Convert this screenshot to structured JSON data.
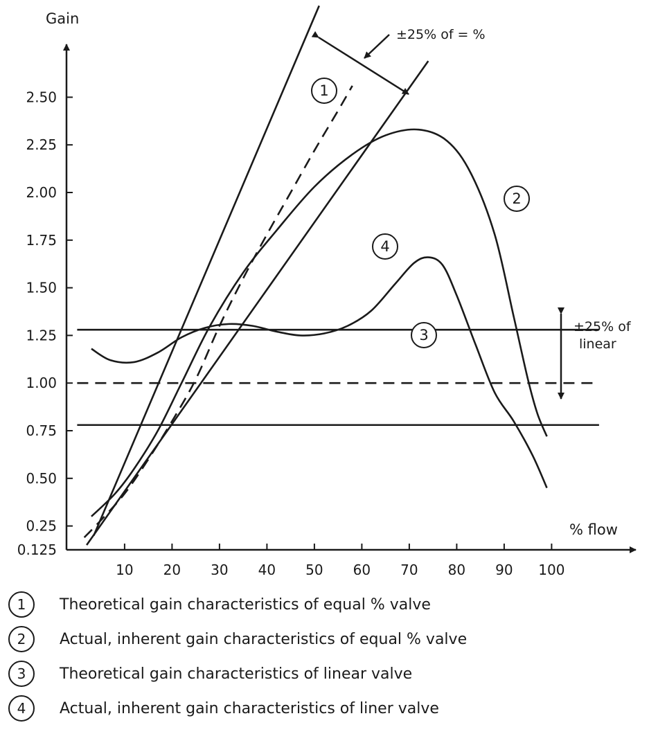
{
  "chart_data": {
    "type": "line",
    "title": "",
    "xlabel": "% flow",
    "ylabel": "Gain",
    "xlim": [
      0,
      110
    ],
    "ylim": [
      0.125,
      2.75
    ],
    "x_ticks": [
      10,
      20,
      30,
      40,
      50,
      60,
      70,
      80,
      90,
      100
    ],
    "y_ticks": [
      {
        "value": 0.125,
        "label": "0.125"
      },
      {
        "value": 0.25,
        "label": "0.25"
      },
      {
        "value": 0.5,
        "label": "0.50"
      },
      {
        "value": 0.75,
        "label": "0.75"
      },
      {
        "value": 1.0,
        "label": "1.00"
      },
      {
        "value": 1.25,
        "label": "1.25"
      },
      {
        "value": 1.5,
        "label": "1.50"
      },
      {
        "value": 1.75,
        "label": "1.75"
      },
      {
        "value": 2.0,
        "label": "2.00"
      },
      {
        "value": 2.25,
        "label": "2.25"
      },
      {
        "value": 2.5,
        "label": "2.50"
      }
    ],
    "series": [
      {
        "key": "eq-theoretical",
        "style": "dashed",
        "marker": "1",
        "x": [
          1.5,
          5,
          10,
          15,
          20,
          25,
          30,
          35,
          40,
          45,
          50,
          55,
          58
        ],
        "y": [
          0.19,
          0.28,
          0.42,
          0.6,
          0.8,
          1.02,
          1.3,
          1.55,
          1.78,
          2.0,
          2.22,
          2.43,
          2.56
        ]
      },
      {
        "key": "eq-upper",
        "style": "solid",
        "x": [
          3.5,
          51
        ],
        "y": [
          0.2,
          2.98
        ]
      },
      {
        "key": "eq-lower",
        "style": "solid",
        "x": [
          2,
          74
        ],
        "y": [
          0.15,
          2.69
        ]
      },
      {
        "key": "eq-actual",
        "style": "solid",
        "marker": "2",
        "x": [
          3,
          8,
          12,
          17,
          22,
          28,
          35,
          42,
          50,
          58,
          65,
          72,
          78,
          83,
          88,
          92,
          95,
          97,
          99
        ],
        "y": [
          0.3,
          0.42,
          0.55,
          0.75,
          1.0,
          1.3,
          1.58,
          1.8,
          2.03,
          2.2,
          2.3,
          2.33,
          2.27,
          2.1,
          1.78,
          1.35,
          1.02,
          0.84,
          0.72
        ]
      },
      {
        "key": "linear-theoretical",
        "style": "dashed",
        "marker": "3",
        "x": [
          0,
          110
        ],
        "y": [
          1.0,
          1.0
        ]
      },
      {
        "key": "linear-upper",
        "style": "solid",
        "x": [
          0,
          110
        ],
        "y": [
          1.28,
          1.28
        ]
      },
      {
        "key": "linear-lower",
        "style": "solid",
        "x": [
          0,
          110
        ],
        "y": [
          0.78,
          0.78
        ]
      },
      {
        "key": "linear-actual",
        "style": "solid",
        "marker": "4",
        "x": [
          3,
          7,
          12,
          17,
          22,
          27,
          32,
          37,
          42,
          47,
          52,
          57,
          62,
          67,
          71,
          74,
          77,
          80,
          84,
          88,
          92,
          96,
          99
        ],
        "y": [
          1.18,
          1.12,
          1.11,
          1.16,
          1.24,
          1.29,
          1.31,
          1.3,
          1.27,
          1.25,
          1.26,
          1.3,
          1.38,
          1.52,
          1.63,
          1.66,
          1.62,
          1.46,
          1.2,
          0.95,
          0.8,
          0.62,
          0.45
        ]
      }
    ],
    "annotations": {
      "eq_band": "±25% of = %",
      "linear_band_line1": "±25% of",
      "linear_band_line2": "linear",
      "markers": [
        "1",
        "2",
        "3",
        "4"
      ]
    },
    "legend_placement": "bottom"
  },
  "legend": [
    {
      "num": "1",
      "text": "Theoretical gain characteristics of equal % valve"
    },
    {
      "num": "2",
      "text": "Actual, inherent gain characteristics of equal % valve"
    },
    {
      "num": "3",
      "text": "Theoretical gain characteristics of linear valve"
    },
    {
      "num": "4",
      "text": "Actual, inherent gain characteristics of liner valve"
    }
  ]
}
